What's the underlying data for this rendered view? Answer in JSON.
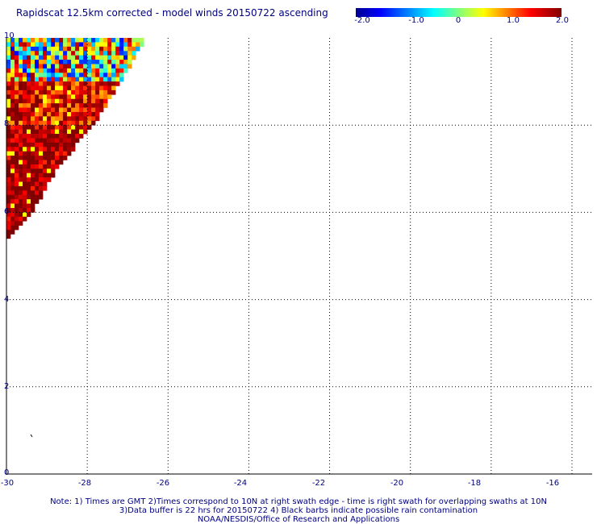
{
  "title": "Rapidscat 12.5km corrected - model winds 20150722 ascending",
  "colorbar": {
    "labels": [
      "-2.0",
      "-1.0",
      "0",
      "1.0",
      "2.0"
    ],
    "range": [
      -2.0,
      2.0
    ]
  },
  "y_labels": [
    "10",
    "8",
    "6",
    "4",
    "2",
    "0"
  ],
  "x_labels": [
    "-30",
    "-28",
    "-26",
    "-24",
    "-22",
    "-20",
    "-18",
    "-16"
  ],
  "notes": [
    "Note: 1) Times are GMT 2)Times correspond to 10N at right swath edge - time is right swath for overlapping swaths at 10N",
    "3)Data buffer is 22 hrs for 20150722 4) Black barbs indicate possible rain contamination",
    "NOAA/NESDIS/Office of Research and Applications"
  ],
  "chart_data": {
    "type": "heatmap",
    "title": "Rapidscat 12.5km corrected - model winds 20150722 ascending",
    "xlim": [
      -30,
      -15.5
    ],
    "ylim": [
      0,
      10
    ],
    "grid": true,
    "colorscale": [
      "#00008f",
      "#0000ff",
      "#00ffff",
      "#ffff00",
      "#ff0000",
      "#800000"
    ],
    "value_range": [
      -2.0,
      2.0
    ],
    "swath_edge": [
      {
        "lat": 10.0,
        "lon_max": -26.6
      },
      {
        "lat": 9.0,
        "lon_max": -27.2
      },
      {
        "lat": 8.0,
        "lon_max": -27.9
      },
      {
        "lat": 7.0,
        "lon_max": -28.8
      },
      {
        "lat": 6.0,
        "lon_max": -29.4
      },
      {
        "lat": 5.4,
        "lon_max": -30.0
      }
    ],
    "row_bias": [
      {
        "lat_min": 9.0,
        "lat_max": 10.0,
        "mean_diff": 0.3
      },
      {
        "lat_min": 8.0,
        "lat_max": 9.0,
        "mean_diff": 1.4
      },
      {
        "lat_min": 7.0,
        "lat_max": 8.0,
        "mean_diff": 1.8
      },
      {
        "lat_min": 5.4,
        "lat_max": 7.0,
        "mean_diff": 1.9
      }
    ]
  }
}
